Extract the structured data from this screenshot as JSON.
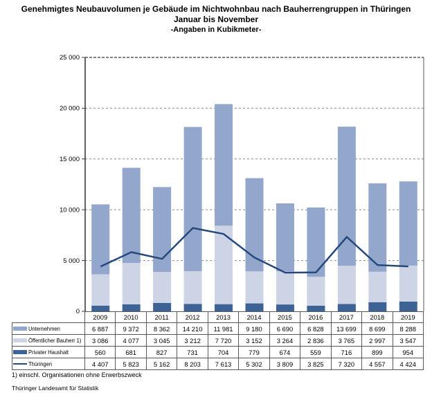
{
  "chart_data": {
    "type": "bar",
    "stacked": true,
    "title": "Genehmigtes Neubauvolumen je Gebäude im Nichtwohnbau nach Bauherrengruppen in Thüringen",
    "subtitle": "Januar bis November",
    "units_label": "-Angaben in Kubikmeter-",
    "categories": [
      "2009",
      "2010",
      "2011",
      "2012",
      "2013",
      "2014",
      "2015",
      "2016",
      "2017",
      "2018",
      "2019"
    ],
    "series": [
      {
        "name": "Unternehmen",
        "type": "bar",
        "color": "#92A7CB",
        "values": [
          6887,
          9372,
          8362,
          14210,
          11981,
          9180,
          6690,
          6828,
          13699,
          8699,
          8288
        ]
      },
      {
        "name": "Öffentlicher Bauherr 1)",
        "type": "bar",
        "color": "#CDD4E6",
        "values": [
          3086,
          4077,
          3045,
          3212,
          7720,
          3152,
          3264,
          2836,
          3765,
          2997,
          3547
        ]
      },
      {
        "name": "Privater Haushalt",
        "type": "bar",
        "color": "#3D6295",
        "values": [
          560,
          681,
          827,
          731,
          704,
          779,
          674,
          559,
          716,
          899,
          954
        ]
      },
      {
        "name": "Thüringen",
        "type": "line",
        "color": "#26497C",
        "values": [
          4407,
          5823,
          5162,
          8203,
          7613,
          5302,
          3809,
          3825,
          7320,
          4557,
          4424
        ]
      }
    ],
    "stack_order_bottom_to_top": [
      "Privater Haushalt",
      "Öffentlicher Bauherr 1)",
      "Unternehmen"
    ],
    "ylim": [
      0,
      25000
    ],
    "ytick_step": 5000,
    "grid": "dashed-horizontal",
    "legend_position": "table-left",
    "axis_color": "#3a3a3a",
    "grid_color": "#888888",
    "plot_border_color": "#595959"
  },
  "footnotes": {
    "note1": "1) einschl. Organisationen ohne Erwerbszweck",
    "source": "Thüringer Landesamt für Statistik"
  }
}
